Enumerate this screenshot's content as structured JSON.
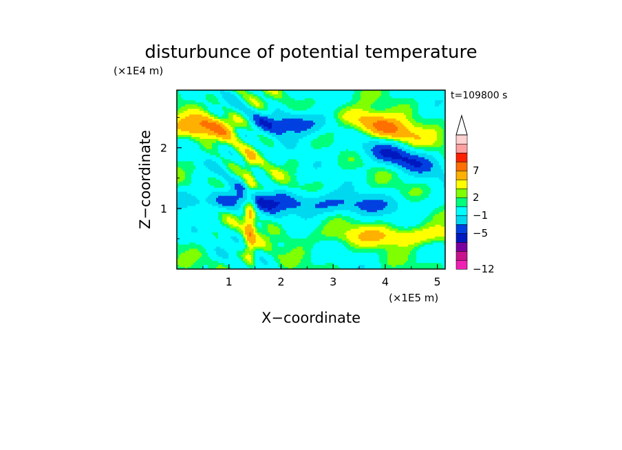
{
  "chart_data": {
    "type": "heatmap",
    "title": "disturbunce of potential temperature",
    "xlabel": "X−coordinate",
    "ylabel": "Z−coordinate",
    "x_unit": "(×1E5 m)",
    "y_unit": "(×1E4 m)",
    "time_label": "t=109800 s",
    "xlim": [
      0,
      5.15
    ],
    "ylim": [
      0,
      2.95
    ],
    "x_ticks": [
      1,
      2,
      3,
      4,
      5
    ],
    "y_ticks": [
      1,
      2
    ],
    "colorbar": {
      "levels": [
        -12,
        -11,
        -9,
        -7,
        -5,
        -3,
        -1,
        1,
        2,
        3,
        5,
        7,
        9,
        11
      ],
      "colors": [
        "#f01fb4",
        "#c8148c",
        "#7a00a0",
        "#0018c0",
        "#0040e0",
        "#00d8f0",
        "#00ffff",
        "#00ff7a",
        "#80ff00",
        "#ffff00",
        "#ffb000",
        "#ff7000",
        "#ff2000",
        "#ffa0a0",
        "#ffd0d0"
      ],
      "tick_labels": [
        "7",
        "2",
        "−1",
        "−5",
        "−12"
      ],
      "tick_values": [
        7,
        2,
        -1,
        -5,
        -12
      ],
      "extend": "max"
    },
    "features": [
      {
        "x": 3.9,
        "z": 2.35,
        "value": 8,
        "label": "warm anomaly upper right"
      },
      {
        "x": 4.2,
        "z": 1.85,
        "value": -6,
        "label": "cold anomaly upper right"
      },
      {
        "x": 2.2,
        "z": 2.4,
        "value": -6,
        "label": "cold anomaly upper middle"
      },
      {
        "x": 0.5,
        "z": 2.35,
        "value": 6,
        "label": "warm anomaly upper left"
      },
      {
        "x": 3.0,
        "z": 1.05,
        "value": -4,
        "label": "cold band mid level"
      },
      {
        "x": 1.0,
        "z": 1.15,
        "value": -4,
        "label": "cold band left mid level"
      },
      {
        "x": 4.3,
        "z": 0.55,
        "value": 4,
        "label": "warm band lower right"
      },
      {
        "x": 1.4,
        "z": 0.9,
        "value": 5,
        "label": "warm plume near x=1.4"
      }
    ]
  }
}
